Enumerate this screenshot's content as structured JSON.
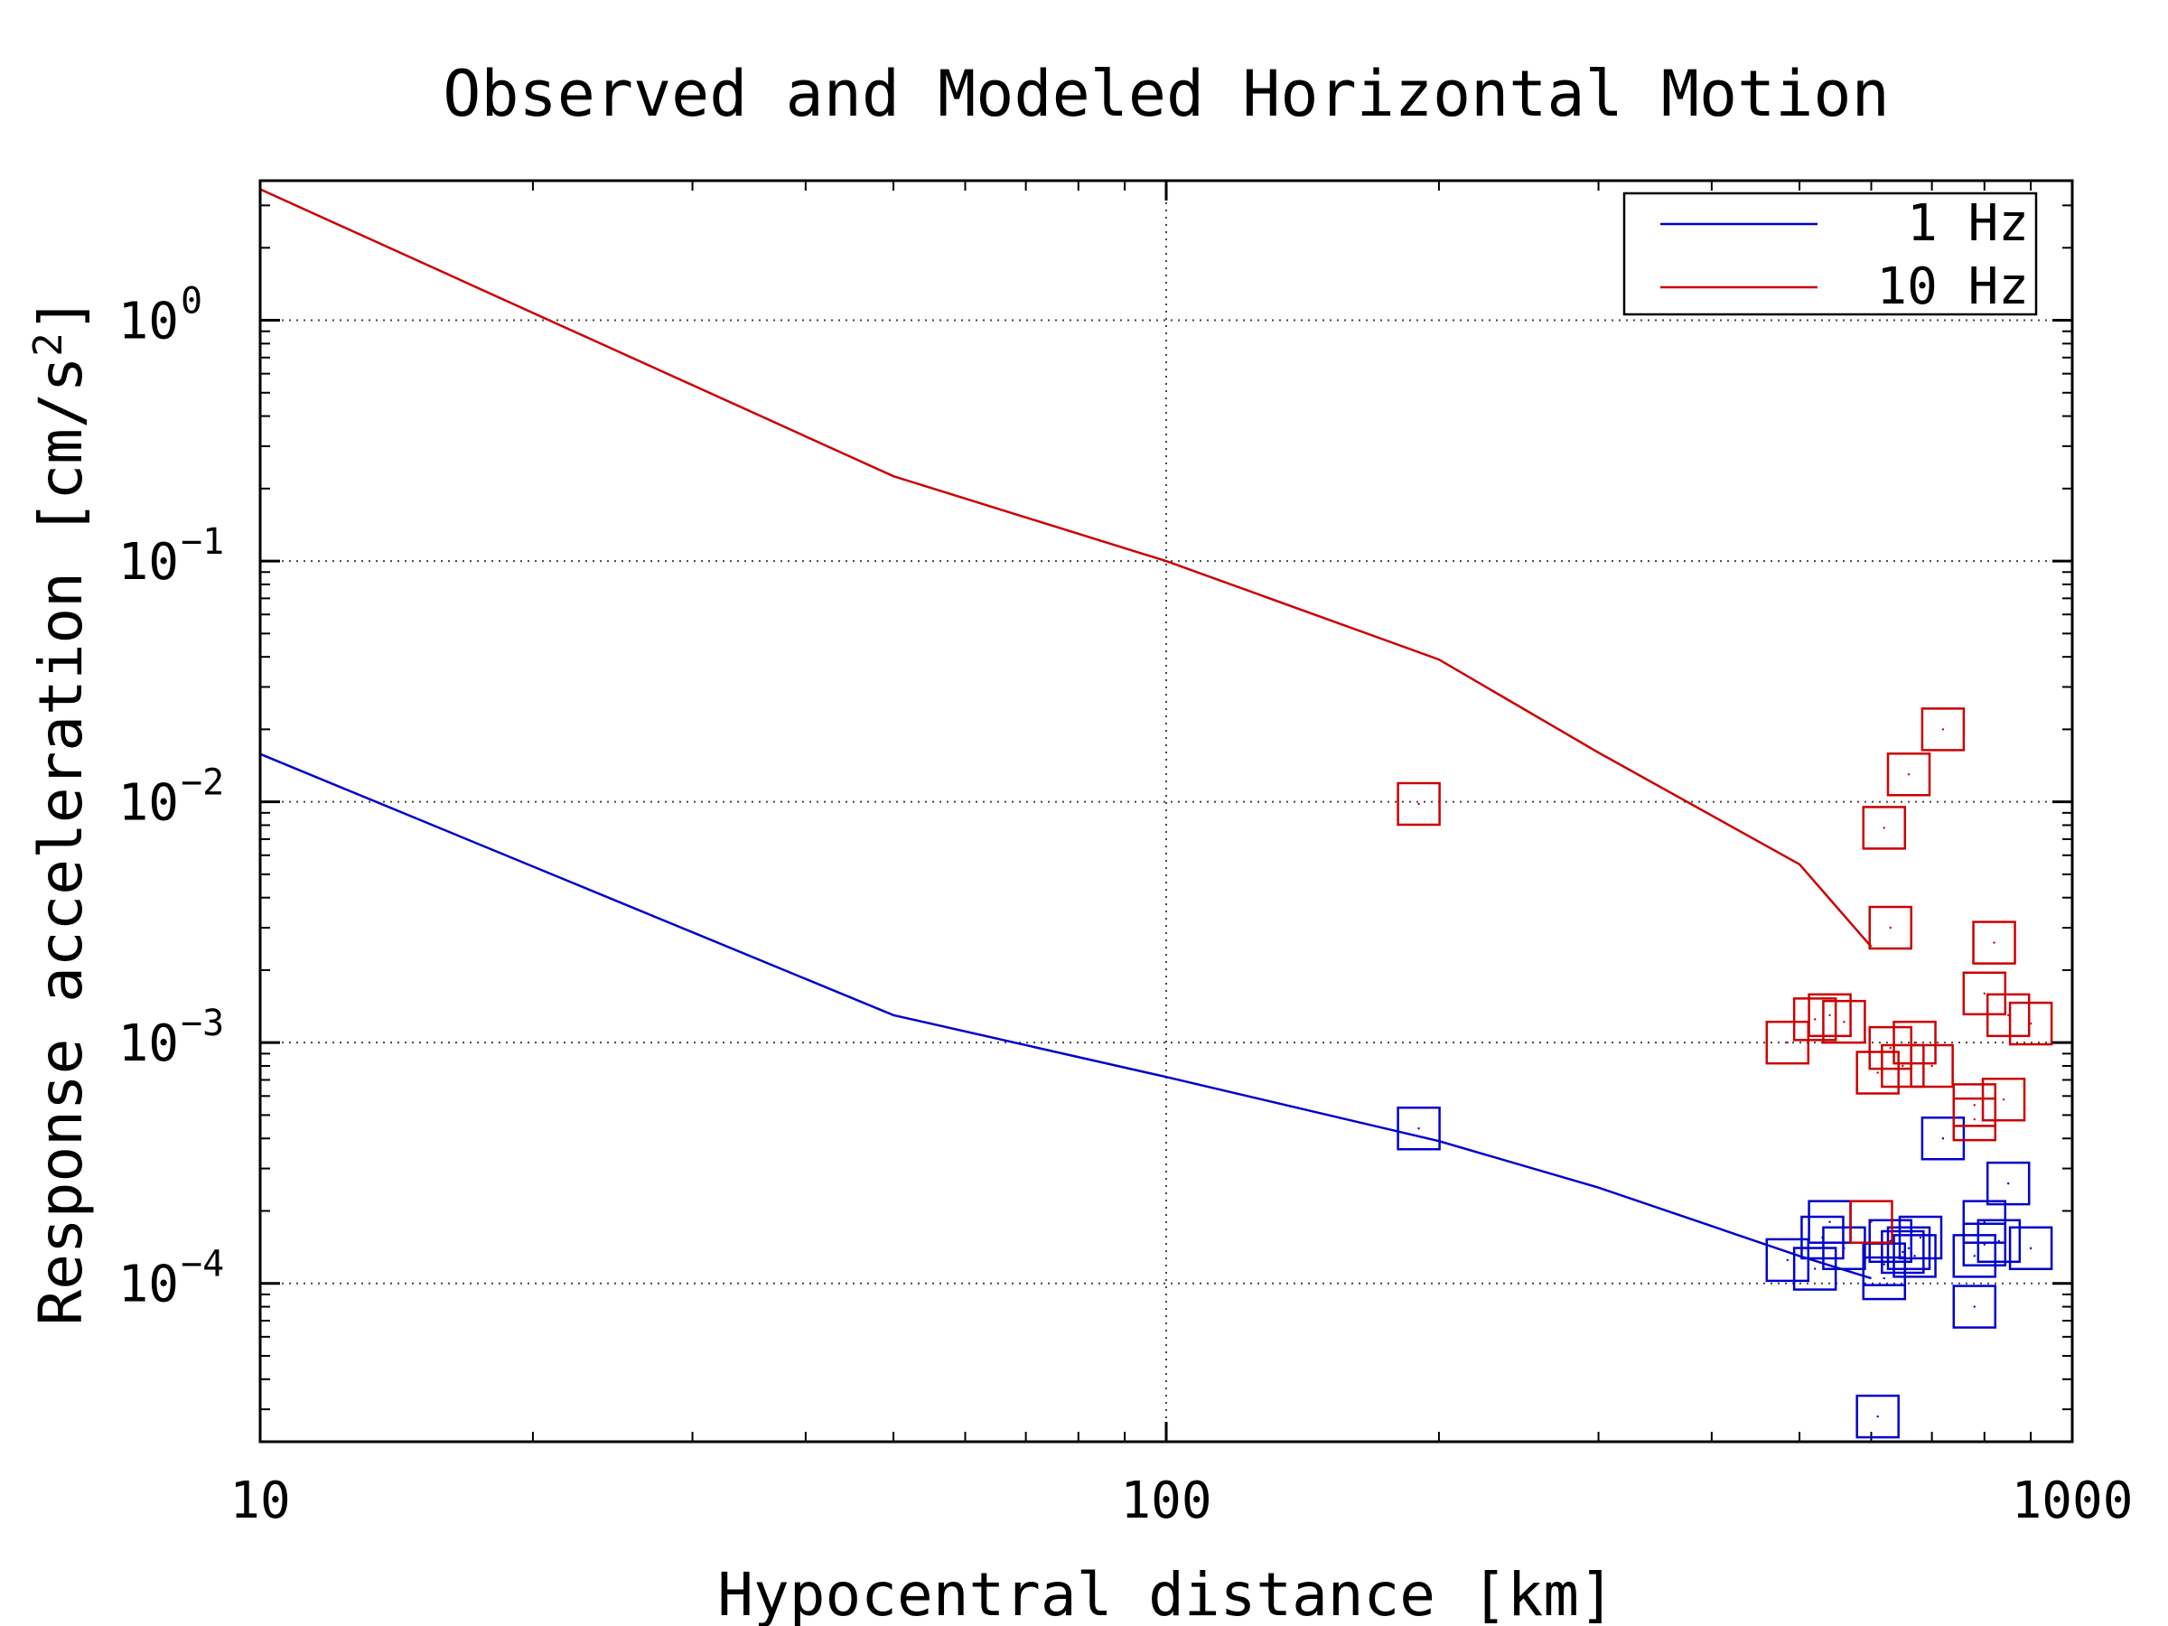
{
  "chart_data": {
    "type": "scatter",
    "title": "Observed and Modeled Horizontal Motion",
    "xlabel": "Hypocentral distance [km]",
    "ylabel": "Response acceleration [cm/s²]",
    "xscale": "log",
    "yscale": "log",
    "xlim": [
      10,
      1000
    ],
    "ylim": [
      2.2e-05,
      3.8
    ],
    "x_ticks": [
      {
        "value": 10,
        "label": "10"
      },
      {
        "value": 100,
        "label": "100"
      },
      {
        "value": 1000,
        "label": "1000"
      }
    ],
    "y_ticks": [
      {
        "value": 1,
        "base": "10",
        "exp": "0"
      },
      {
        "value": 0.1,
        "base": "10",
        "exp": "−1"
      },
      {
        "value": 0.01,
        "base": "10",
        "exp": "−2"
      },
      {
        "value": 0.001,
        "base": "10",
        "exp": "−3"
      },
      {
        "value": 0.0001,
        "base": "10",
        "exp": "−4"
      }
    ],
    "grid": true,
    "legend_position": "top-right",
    "legend": [
      {
        "label": "1 Hz",
        "color": "#0000cc"
      },
      {
        "label": "10 Hz",
        "color": "#cc0000"
      }
    ],
    "model_series": [
      {
        "name": "1 Hz",
        "color": "#0000cc",
        "points": [
          [
            10,
            0.0158
          ],
          [
            50,
            0.0013
          ],
          [
            100,
            0.00072
          ],
          [
            200,
            0.00039
          ],
          [
            300,
            0.00025
          ],
          [
            500,
            0.00013
          ],
          [
            600,
            0.000105
          ]
        ]
      },
      {
        "name": "10 Hz",
        "color": "#cc0000",
        "points": [
          [
            10,
            3.5
          ],
          [
            50,
            0.225
          ],
          [
            100,
            0.1
          ],
          [
            200,
            0.039
          ],
          [
            300,
            0.016
          ],
          [
            500,
            0.0055
          ],
          [
            600,
            0.0025
          ]
        ]
      }
    ],
    "observed_series": [
      {
        "legend_ref": "1 Hz",
        "color": "#0000cc",
        "points": [
          [
            190,
            0.00044
          ],
          [
            485,
            0.000125
          ],
          [
            520,
            0.000115
          ],
          [
            530,
            0.000155
          ],
          [
            540,
            0.00018
          ],
          [
            560,
            0.00014
          ],
          [
            610,
            2.8e-05
          ],
          [
            620,
            0.000105
          ],
          [
            620,
            0.00012
          ],
          [
            630,
            0.00015
          ],
          [
            650,
            0.000135
          ],
          [
            660,
            0.00014
          ],
          [
            670,
            0.00013
          ],
          [
            680,
            0.000155
          ],
          [
            720,
            0.0004
          ],
          [
            780,
            8e-05
          ],
          [
            780,
            0.00013
          ],
          [
            800,
            0.00018
          ],
          [
            800,
            0.000145
          ],
          [
            830,
            0.00015
          ],
          [
            850,
            0.00026
          ],
          [
            900,
            0.00014
          ]
        ]
      },
      {
        "legend_ref": "10 Hz",
        "color": "#cc0000",
        "points": [
          [
            190,
            0.0098
          ],
          [
            485,
            0.001
          ],
          [
            520,
            0.00125
          ],
          [
            540,
            0.0013
          ],
          [
            560,
            0.00122
          ],
          [
            600,
            0.00018
          ],
          [
            610,
            0.00075
          ],
          [
            620,
            0.0078
          ],
          [
            630,
            0.003
          ],
          [
            630,
            0.00095
          ],
          [
            650,
            0.0008
          ],
          [
            660,
            0.013
          ],
          [
            670,
            0.001
          ],
          [
            700,
            0.0008
          ],
          [
            720,
            0.02
          ],
          [
            780,
            0.00055
          ],
          [
            780,
            0.00048
          ],
          [
            800,
            0.0016
          ],
          [
            820,
            0.0026
          ],
          [
            840,
            0.00058
          ],
          [
            850,
            0.0013
          ],
          [
            900,
            0.0012
          ]
        ]
      }
    ]
  }
}
